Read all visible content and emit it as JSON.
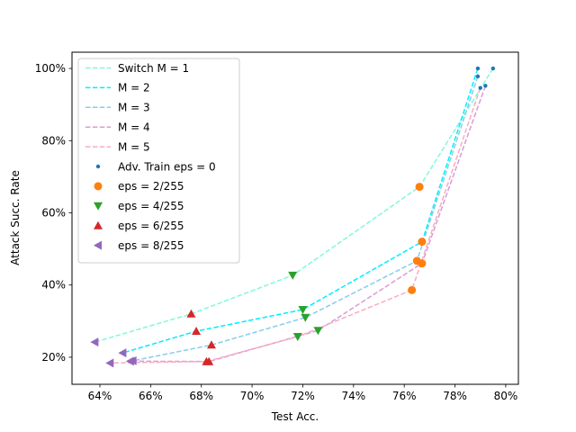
{
  "chart_data": {
    "type": "scatter",
    "title": "",
    "xlabel": "Test Acc.",
    "ylabel": "Attack Succ. Rate",
    "xlim": [
      0.629,
      0.805
    ],
    "ylim": [
      0.125,
      1.045
    ],
    "x_ticks": [
      0.64,
      0.66,
      0.68,
      0.7,
      0.72,
      0.74,
      0.76,
      0.78,
      0.8
    ],
    "x_tick_labels": [
      "64%",
      "66%",
      "68%",
      "70%",
      "72%",
      "74%",
      "76%",
      "78%",
      "80%"
    ],
    "y_ticks": [
      0.2,
      0.4,
      0.6,
      0.8,
      1.0
    ],
    "y_tick_labels": [
      "20%",
      "40%",
      "60%",
      "80%",
      "100%"
    ],
    "legend_position": "top-left",
    "series": [
      {
        "name": "Switch M = 1",
        "color": "#7ff9de",
        "points": [
          {
            "x": 0.795,
            "y": 1.0,
            "eps": 0
          },
          {
            "x": 0.766,
            "y": 0.672,
            "eps": 2
          },
          {
            "x": 0.716,
            "y": 0.427,
            "eps": 4
          },
          {
            "x": 0.676,
            "y": 0.32,
            "eps": 6
          },
          {
            "x": 0.638,
            "y": 0.242,
            "eps": 8
          }
        ]
      },
      {
        "name": "M = 2",
        "color": "#00efff",
        "points": [
          {
            "x": 0.789,
            "y": 1.0,
            "eps": 0
          },
          {
            "x": 0.767,
            "y": 0.52,
            "eps": 2
          },
          {
            "x": 0.72,
            "y": 0.332,
            "eps": 4
          },
          {
            "x": 0.678,
            "y": 0.272,
            "eps": 6
          },
          {
            "x": 0.649,
            "y": 0.212,
            "eps": 8
          }
        ]
      },
      {
        "name": "M = 3",
        "color": "#88cdeb",
        "points": [
          {
            "x": 0.789,
            "y": 0.978,
            "eps": 0
          },
          {
            "x": 0.765,
            "y": 0.467,
            "eps": 2
          },
          {
            "x": 0.721,
            "y": 0.31,
            "eps": 4
          },
          {
            "x": 0.684,
            "y": 0.234,
            "eps": 6
          },
          {
            "x": 0.653,
            "y": 0.19,
            "eps": 8
          }
        ]
      },
      {
        "name": "M = 4",
        "color": "#d99bd6",
        "points": [
          {
            "x": 0.792,
            "y": 0.952,
            "eps": 0
          },
          {
            "x": 0.767,
            "y": 0.46,
            "eps": 2
          },
          {
            "x": 0.726,
            "y": 0.274,
            "eps": 4
          },
          {
            "x": 0.683,
            "y": 0.188,
            "eps": 6
          },
          {
            "x": 0.652,
            "y": 0.189,
            "eps": 8
          }
        ]
      },
      {
        "name": "M = 5",
        "color": "#f7adc2",
        "points": [
          {
            "x": 0.79,
            "y": 0.946,
            "eps": 0
          },
          {
            "x": 0.763,
            "y": 0.386,
            "eps": 2
          },
          {
            "x": 0.718,
            "y": 0.257,
            "eps": 4
          },
          {
            "x": 0.682,
            "y": 0.188,
            "eps": 6
          },
          {
            "x": 0.644,
            "y": 0.184,
            "eps": 8
          }
        ]
      }
    ],
    "marker_groups": [
      {
        "eps": 0,
        "label": "Adv. Train eps = 0",
        "color": "#1f77b4",
        "marker": "small-dot"
      },
      {
        "eps": 2,
        "label": "eps = 2/255",
        "color": "#ff7f0e",
        "marker": "circle"
      },
      {
        "eps": 4,
        "label": "eps = 4/255",
        "color": "#2ca02c",
        "marker": "triangle-down"
      },
      {
        "eps": 6,
        "label": "eps = 6/255",
        "color": "#d62728",
        "marker": "triangle-up"
      },
      {
        "eps": 8,
        "label": "eps = 8/255",
        "color": "#9467bd",
        "marker": "triangle-left"
      }
    ]
  }
}
